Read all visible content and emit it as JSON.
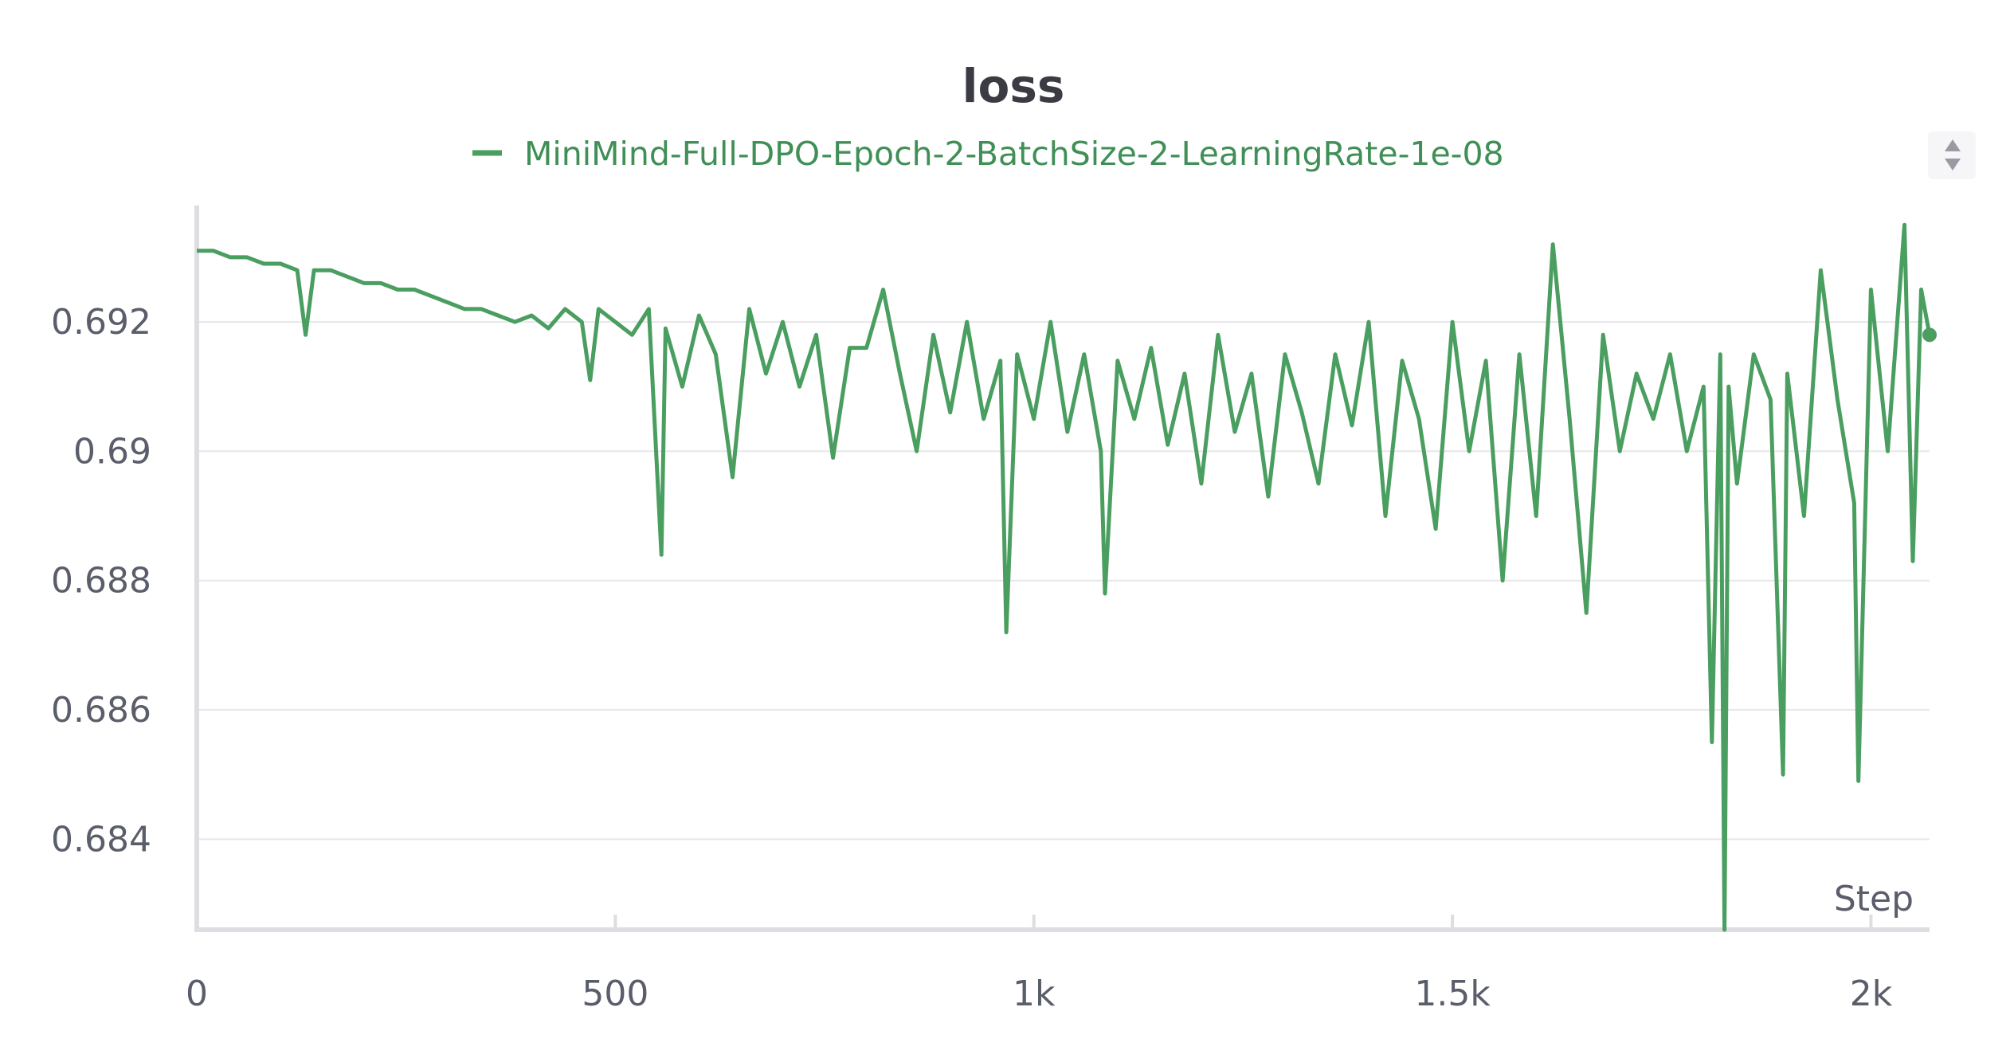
{
  "chart_data": {
    "type": "line",
    "title": "loss",
    "xlabel": "Step",
    "ylabel": "",
    "xlim": [
      0,
      2070
    ],
    "ylim": [
      0.6826,
      0.6938
    ],
    "x_ticks": [
      0,
      500,
      1000,
      1500,
      2000
    ],
    "x_tick_labels": [
      "0",
      "500",
      "1k",
      "1.5k",
      "2k"
    ],
    "y_ticks": [
      0.684,
      0.686,
      0.688,
      0.69,
      0.692
    ],
    "y_tick_labels": [
      "0.684",
      "0.686",
      "0.688",
      "0.69",
      "0.692"
    ],
    "grid": true,
    "legend_position": "top-center",
    "series": [
      {
        "name": "MiniMind-Full-DPO-Epoch-2-BatchSize-2-LearningRate-1e-08",
        "color": "#4a9e60",
        "x": [
          0,
          20,
          40,
          60,
          80,
          100,
          120,
          130,
          140,
          160,
          180,
          200,
          220,
          240,
          260,
          280,
          300,
          320,
          340,
          360,
          380,
          400,
          420,
          440,
          460,
          470,
          480,
          500,
          520,
          540,
          555,
          560,
          580,
          600,
          620,
          640,
          660,
          680,
          700,
          720,
          740,
          760,
          780,
          800,
          820,
          840,
          860,
          880,
          900,
          920,
          940,
          960,
          967,
          980,
          1000,
          1020,
          1040,
          1060,
          1080,
          1085,
          1100,
          1120,
          1140,
          1160,
          1180,
          1200,
          1220,
          1240,
          1260,
          1280,
          1300,
          1320,
          1340,
          1360,
          1380,
          1400,
          1420,
          1440,
          1460,
          1480,
          1500,
          1520,
          1540,
          1560,
          1580,
          1600,
          1620,
          1640,
          1660,
          1680,
          1700,
          1720,
          1740,
          1760,
          1780,
          1800,
          1810,
          1820,
          1825,
          1830,
          1840,
          1860,
          1880,
          1895,
          1900,
          1920,
          1940,
          1960,
          1980,
          1985,
          2000,
          2020,
          2040,
          2050,
          2060,
          2070
        ],
        "values": [
          0.6931,
          0.6931,
          0.693,
          0.693,
          0.6929,
          0.6929,
          0.6928,
          0.6918,
          0.6928,
          0.6928,
          0.6927,
          0.6926,
          0.6926,
          0.6925,
          0.6925,
          0.6924,
          0.6923,
          0.6922,
          0.6922,
          0.6921,
          0.692,
          0.6921,
          0.6919,
          0.6922,
          0.692,
          0.6911,
          0.6922,
          0.692,
          0.6918,
          0.6922,
          0.6884,
          0.6919,
          0.691,
          0.6921,
          0.6915,
          0.6896,
          0.6922,
          0.6912,
          0.692,
          0.691,
          0.6918,
          0.6899,
          0.6916,
          0.6916,
          0.6925,
          0.6912,
          0.69,
          0.6918,
          0.6906,
          0.692,
          0.6905,
          0.6914,
          0.6872,
          0.6915,
          0.6905,
          0.692,
          0.6903,
          0.6915,
          0.69,
          0.6878,
          0.6914,
          0.6905,
          0.6916,
          0.6901,
          0.6912,
          0.6895,
          0.6918,
          0.6903,
          0.6912,
          0.6893,
          0.6915,
          0.6906,
          0.6895,
          0.6915,
          0.6904,
          0.692,
          0.689,
          0.6914,
          0.6905,
          0.6888,
          0.692,
          0.69,
          0.6914,
          0.688,
          0.6915,
          0.689,
          0.6932,
          0.6905,
          0.6875,
          0.6918,
          0.69,
          0.6912,
          0.6905,
          0.6915,
          0.69,
          0.691,
          0.6855,
          0.6915,
          0.6826,
          0.691,
          0.6895,
          0.6915,
          0.6908,
          0.685,
          0.6912,
          0.689,
          0.6928,
          0.6908,
          0.6892,
          0.6849,
          0.6925,
          0.69,
          0.6935,
          0.6883,
          0.6925,
          0.6918
        ]
      }
    ]
  },
  "legend": {
    "marker_color": "#4a9e60"
  },
  "icons": {
    "legend_scroll": "sort-arrows-icon"
  }
}
